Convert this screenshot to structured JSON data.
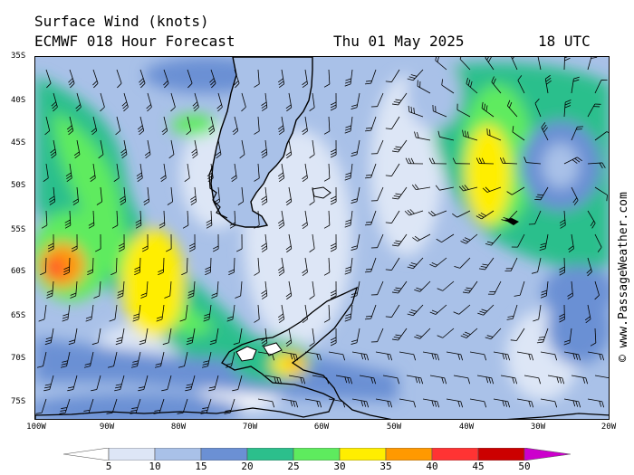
{
  "header": {
    "title": "Surface Wind (knots)",
    "model": "ECMWF 018 Hour Forecast",
    "date": "Thu 01 May 2025",
    "time": "18 UTC"
  },
  "credit": "© www.PassageWeather.com",
  "axes": {
    "lat_labels": [
      "35S",
      "40S",
      "45S",
      "50S",
      "55S",
      "60S",
      "65S",
      "70S",
      "75S"
    ],
    "lon_labels": [
      "100W",
      "90W",
      "80W",
      "70W",
      "60W",
      "50W",
      "40W",
      "30W",
      "20W"
    ]
  },
  "legend": {
    "units": "knots",
    "ticks": [
      "5",
      "10",
      "15",
      "20",
      "25",
      "30",
      "35",
      "40",
      "45",
      "50"
    ],
    "colors": [
      "#ffffff",
      "#dde6f6",
      "#a9c1e8",
      "#6b90d4",
      "#2cbf8c",
      "#5eeb5e",
      "#ffee00",
      "#ff9900",
      "#ff3333",
      "#cc0000",
      "#cc00cc"
    ]
  },
  "palette": {
    "ocean_calm": "#dbe5f7",
    "land_outline": "#000000"
  }
}
